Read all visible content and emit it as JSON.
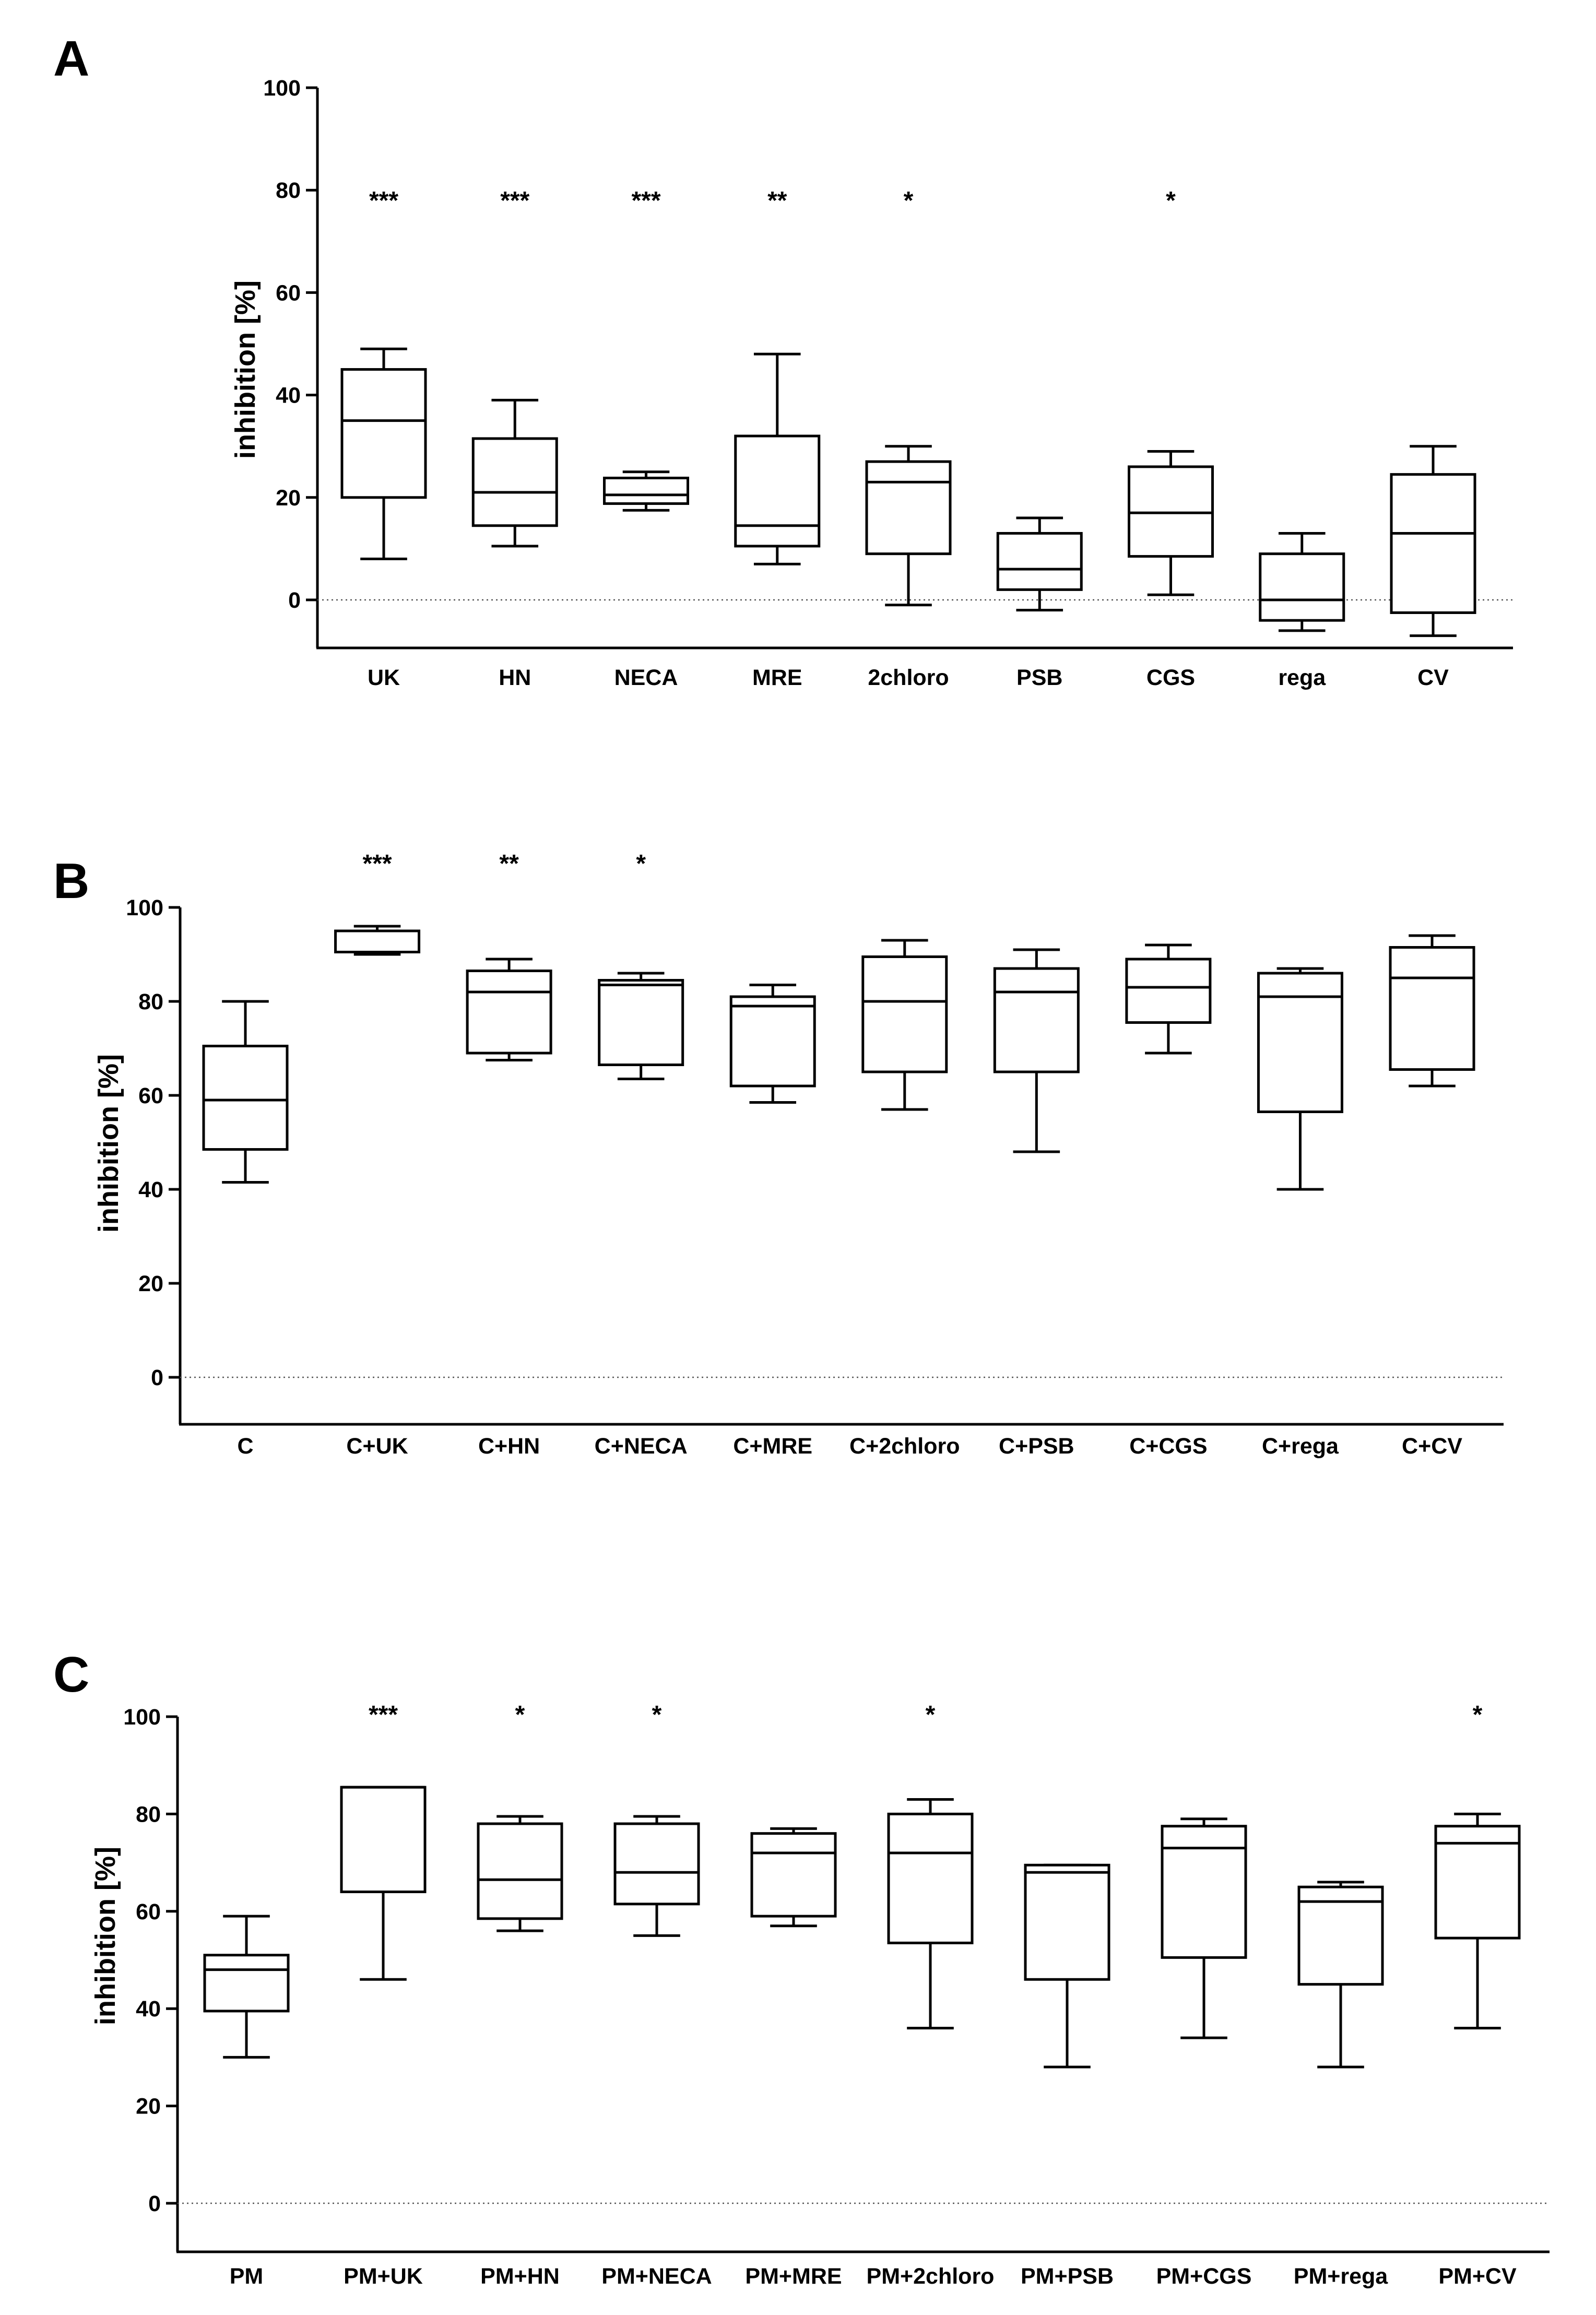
{
  "chart_data": [
    {
      "type": "boxplot",
      "panel": "A",
      "ylabel": "inhibition [%]",
      "ylim": [
        -10,
        100
      ],
      "yticks": [
        0,
        20,
        40,
        60,
        80,
        100
      ],
      "zero_line": "dotted",
      "categories": [
        "UK",
        "HN",
        "NECA",
        "MRE",
        "2chloro",
        "PSB",
        "CGS",
        "rega",
        "CV"
      ],
      "boxes": [
        {
          "min": 8,
          "q1": 20,
          "median": 35,
          "q3": 45,
          "max": 49
        },
        {
          "min": 10.5,
          "q1": 14.5,
          "median": 21,
          "q3": 31.5,
          "max": 39
        },
        {
          "min": 17.5,
          "q1": 18.8,
          "median": 20.5,
          "q3": 23.8,
          "max": 25
        },
        {
          "min": 7,
          "q1": 10.5,
          "median": 14.5,
          "q3": 32,
          "max": 48
        },
        {
          "min": -1,
          "q1": 9,
          "median": 23,
          "q3": 27,
          "max": 30
        },
        {
          "min": -2,
          "q1": 2,
          "median": 6,
          "q3": 13,
          "max": 16
        },
        {
          "min": 1,
          "q1": 8.5,
          "median": 17,
          "q3": 26,
          "max": 29
        },
        {
          "min": -6,
          "q1": -4,
          "median": 0,
          "q3": 9,
          "max": 13
        },
        {
          "min": -7,
          "q1": -2.5,
          "median": 13,
          "q3": 24.5,
          "max": 30
        }
      ],
      "significance": [
        "***",
        "***",
        "***",
        "**",
        "*",
        "",
        "*",
        "",
        ""
      ]
    },
    {
      "type": "boxplot",
      "panel": "B",
      "ylabel": "inhibition [%]",
      "ylim": [
        -10,
        100
      ],
      "yticks": [
        0,
        20,
        40,
        60,
        80,
        100
      ],
      "zero_line": "dotted",
      "categories": [
        "C",
        "C+UK",
        "C+HN",
        "C+NECA",
        "C+MRE",
        "C+2chloro",
        "C+PSB",
        "C+CGS",
        "C+rega",
        "C+CV"
      ],
      "boxes": [
        {
          "min": 41.5,
          "q1": 48.5,
          "median": 59,
          "q3": 70.5,
          "max": 80
        },
        {
          "min": 90,
          "q1": 90.5,
          "median": 90.5,
          "q3": 95,
          "max": 96
        },
        {
          "min": 67.5,
          "q1": 69,
          "median": 82,
          "q3": 86.5,
          "max": 89
        },
        {
          "min": 63.5,
          "q1": 66.5,
          "median": 83.5,
          "q3": 84.5,
          "max": 86
        },
        {
          "min": 58.5,
          "q1": 62,
          "median": 79,
          "q3": 81,
          "max": 83.5
        },
        {
          "min": 57,
          "q1": 65,
          "median": 80,
          "q3": 89.5,
          "max": 93
        },
        {
          "min": 48,
          "q1": 65,
          "median": 82,
          "q3": 87,
          "max": 91
        },
        {
          "min": 69,
          "q1": 75.5,
          "median": 83,
          "q3": 89,
          "max": 92
        },
        {
          "min": 40,
          "q1": 56.5,
          "median": 81,
          "q3": 86,
          "max": 87
        },
        {
          "min": 62,
          "q1": 65.5,
          "median": 85,
          "q3": 91.5,
          "max": 94
        }
      ],
      "significance": [
        "",
        "***",
        "**",
        "*",
        "",
        "",
        "",
        "",
        "",
        ""
      ]
    },
    {
      "type": "boxplot",
      "panel": "C",
      "ylabel": "inhibition [%]",
      "ylim": [
        -10,
        100
      ],
      "yticks": [
        0,
        20,
        40,
        60,
        80,
        100
      ],
      "zero_line": "dotted",
      "categories": [
        "PM",
        "PM+UK",
        "PM+HN",
        "PM+NECA",
        "PM+MRE",
        "PM+2chloro",
        "PM+PSB",
        "PM+CGS",
        "PM+rega",
        "PM+CV"
      ],
      "boxes": [
        {
          "min": 30,
          "q1": 39.5,
          "median": 48,
          "q3": 51,
          "max": 59
        },
        {
          "min": 46,
          "q1": 64,
          "median": 85.5,
          "q3": 85.5,
          "max": 85.5
        },
        {
          "min": 56,
          "q1": 58.5,
          "median": 66.5,
          "q3": 78,
          "max": 79.5
        },
        {
          "min": 55,
          "q1": 61.5,
          "median": 68,
          "q3": 78,
          "max": 79.5
        },
        {
          "min": 57,
          "q1": 59,
          "median": 72,
          "q3": 76,
          "max": 77
        },
        {
          "min": 36,
          "q1": 53.5,
          "median": 72,
          "q3": 80,
          "max": 83
        },
        {
          "min": 28,
          "q1": 46,
          "median": 68,
          "q3": 69.5,
          "max": 69.5
        },
        {
          "min": 34,
          "q1": 50.5,
          "median": 73,
          "q3": 77.5,
          "max": 79
        },
        {
          "min": 28,
          "q1": 45,
          "median": 62,
          "q3": 65,
          "max": 66
        },
        {
          "min": 36,
          "q1": 54.5,
          "median": 74,
          "q3": 77.5,
          "max": 80
        }
      ],
      "significance": [
        "",
        "***",
        "*",
        "*",
        "",
        "*",
        "",
        "",
        "",
        "*"
      ]
    }
  ]
}
